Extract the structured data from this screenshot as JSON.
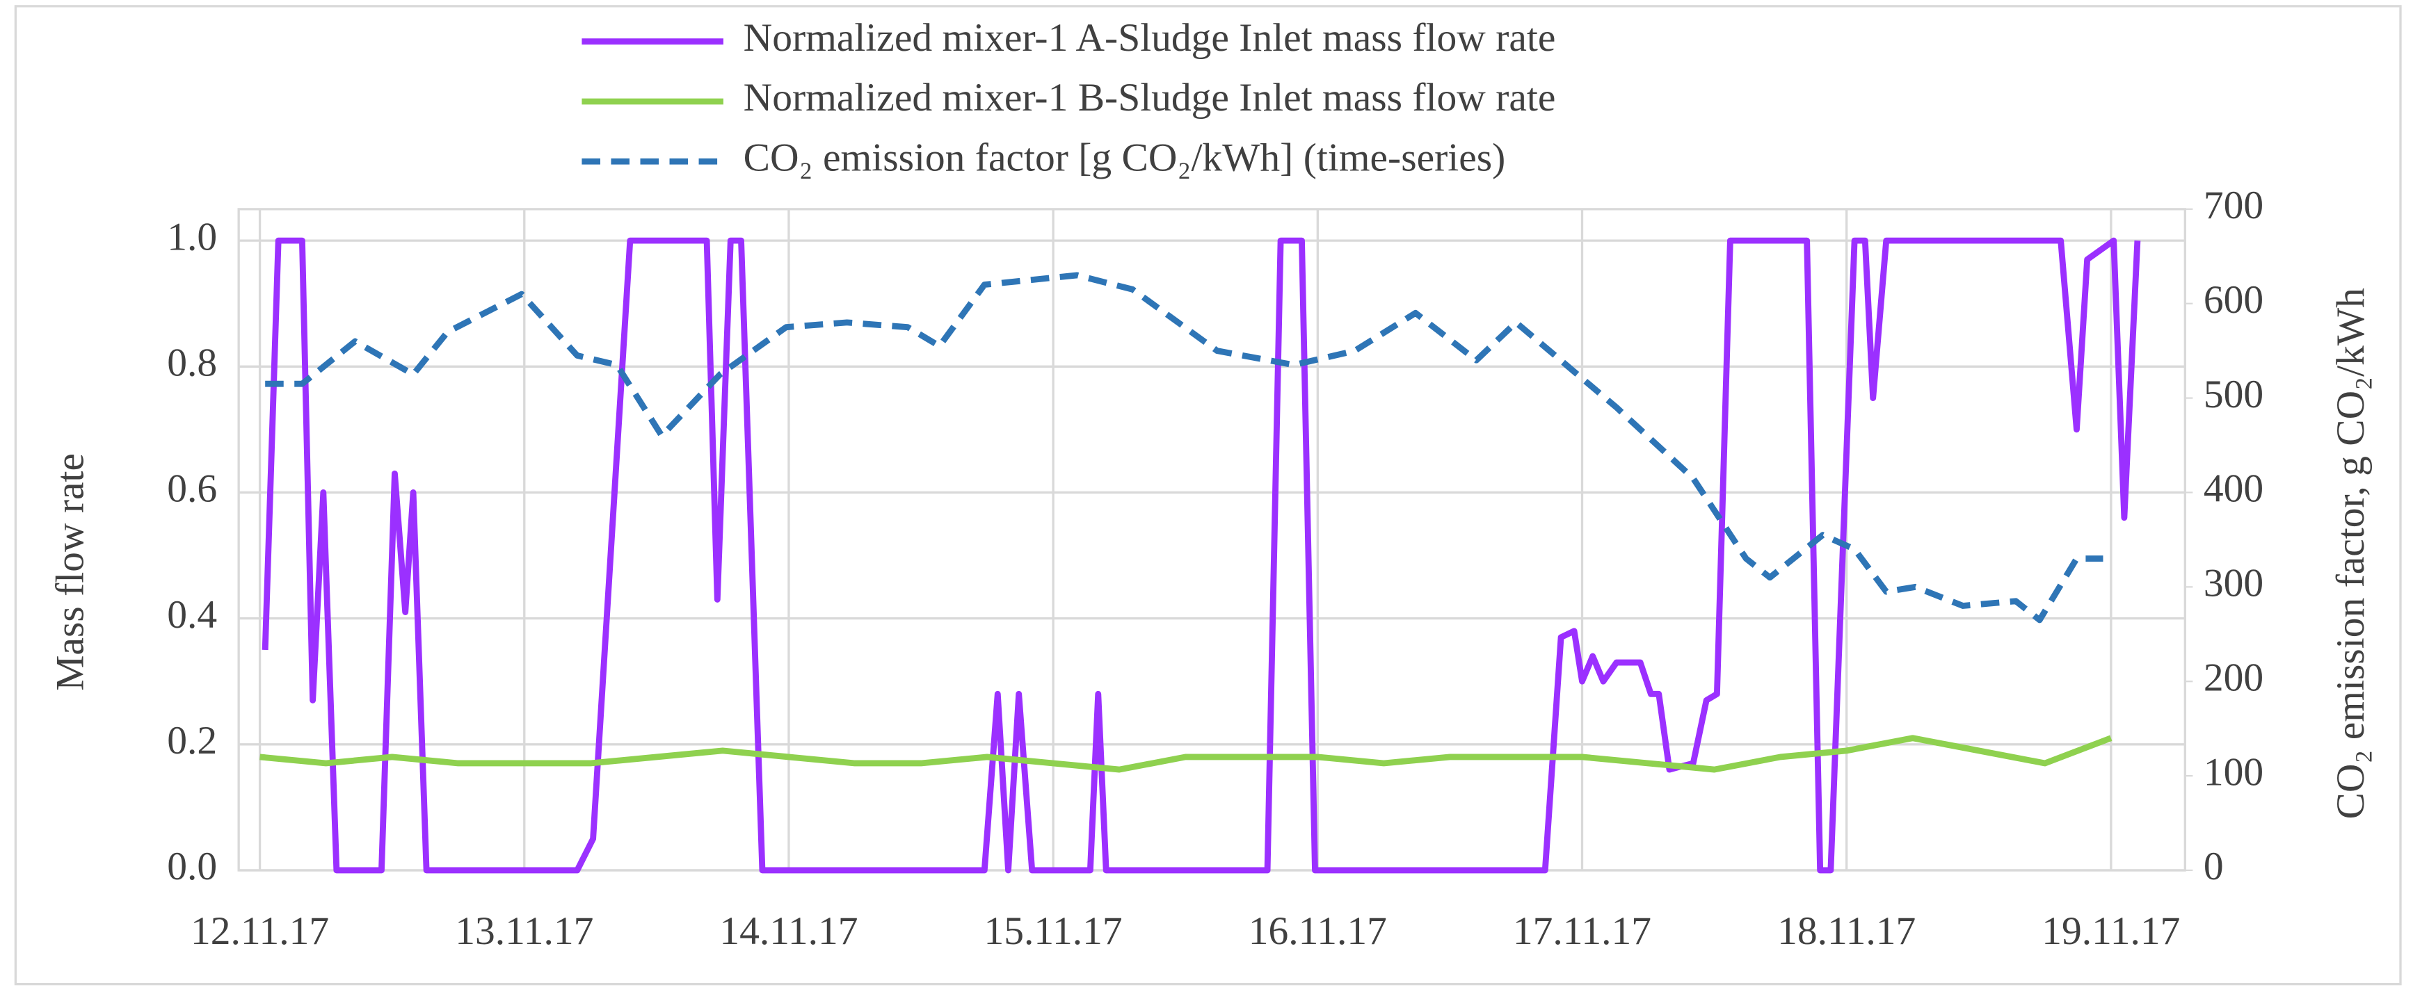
{
  "chart_data": {
    "type": "line",
    "xticks": [
      {
        "value": 0,
        "label": "12.11.17"
      },
      {
        "value": 1,
        "label": "13.11.17"
      },
      {
        "value": 2,
        "label": "14.11.17"
      },
      {
        "value": 3,
        "label": "15.11.17"
      },
      {
        "value": 4,
        "label": "16.11.17"
      },
      {
        "value": 5,
        "label": "17.11.17"
      },
      {
        "value": 6,
        "label": "18.11.17"
      },
      {
        "value": 7,
        "label": "19.11.17"
      }
    ],
    "xlim": [
      -0.08,
      7.28
    ],
    "ylabel": "Mass flow rate",
    "ylim": [
      0,
      1.05
    ],
    "yticks": [
      {
        "value": 0,
        "label": "0.0"
      },
      {
        "value": 0.2,
        "label": "0.2"
      },
      {
        "value": 0.4,
        "label": "0.4"
      },
      {
        "value": 0.6,
        "label": "0.6"
      },
      {
        "value": 0.8,
        "label": "0.8"
      },
      {
        "value": 1,
        "label": "1.0"
      }
    ],
    "y2label": "CO₂ emission factor, g CO₂/kWh",
    "y2lim": [
      0,
      700
    ],
    "y2ticks": [
      0,
      100,
      200,
      300,
      400,
      500,
      600,
      700
    ],
    "grid": true,
    "series": [
      {
        "name": "Normalized mixer-1 A-Sludge Inlet mass flow rate",
        "color": "#9b30ff",
        "x": [
          0.02,
          0.07,
          0.16,
          0.2,
          0.24,
          0.29,
          0.46,
          0.51,
          0.55,
          0.58,
          0.63,
          1.2,
          1.26,
          1.4,
          1.69,
          1.73,
          1.78,
          1.82,
          1.9,
          2.74,
          2.79,
          2.83,
          2.87,
          2.92,
          3.14,
          3.17,
          3.2,
          3.81,
          3.86,
          3.94,
          3.99,
          4.86,
          4.92,
          4.97,
          5.0,
          5.04,
          5.08,
          5.13,
          5.22,
          5.26,
          5.29,
          5.33,
          5.42,
          5.47,
          5.51,
          5.56,
          5.85,
          5.9,
          5.94,
          6.03,
          6.07,
          6.1,
          6.15,
          6.81,
          6.87,
          6.91,
          7.01,
          7.05,
          7.1
        ],
        "values": [
          0.35,
          1,
          1,
          0.27,
          0.6,
          0,
          0,
          0.63,
          0.41,
          0.6,
          0,
          0,
          0.05,
          1,
          1,
          0.43,
          1,
          1,
          0,
          0,
          0.28,
          0,
          0.28,
          0,
          0,
          0.28,
          0,
          0,
          1,
          1,
          0,
          0,
          0.37,
          0.38,
          0.3,
          0.34,
          0.3,
          0.33,
          0.33,
          0.28,
          0.28,
          0.16,
          0.17,
          0.27,
          0.28,
          1,
          1,
          0,
          0,
          1,
          1,
          0.75,
          1,
          1,
          0.7,
          0.97,
          1,
          0.56,
          1
        ]
      },
      {
        "name": "Normalized mixer-1 B-Sludge Inlet mass flow rate",
        "color": "#8fd14f",
        "x": [
          0,
          0.25,
          0.5,
          0.75,
          1,
          1.25,
          1.5,
          1.75,
          2,
          2.25,
          2.5,
          2.75,
          3,
          3.25,
          3.5,
          3.75,
          4,
          4.25,
          4.5,
          4.75,
          5,
          5.25,
          5.5,
          5.75,
          6,
          6.25,
          6.5,
          6.75,
          7
        ],
        "values": [
          0.18,
          0.17,
          0.18,
          0.17,
          0.17,
          0.17,
          0.18,
          0.19,
          0.18,
          0.17,
          0.17,
          0.18,
          0.17,
          0.16,
          0.18,
          0.18,
          0.18,
          0.17,
          0.18,
          0.18,
          0.18,
          0.17,
          0.16,
          0.18,
          0.19,
          0.21,
          0.19,
          0.17,
          0.21
        ]
      },
      {
        "name": "CO₂ emission  factor [g CO₂/kWh] (time-series)",
        "color": "#2e75b6",
        "dashed": true,
        "axis": "y2",
        "x": [
          0.02,
          0.16,
          0.36,
          0.58,
          0.71,
          0.99,
          1.2,
          1.35,
          1.52,
          1.74,
          1.99,
          2.22,
          2.45,
          2.57,
          2.74,
          3.09,
          3.3,
          3.62,
          3.91,
          4.14,
          4.37,
          4.6,
          4.75,
          5.13,
          5.42,
          5.62,
          5.71,
          5.91,
          6.03,
          6.15,
          6.26,
          6.44,
          6.64,
          6.73,
          6.87,
          6.97
        ],
        "values": [
          515,
          515,
          560,
          525,
          570,
          610,
          545,
          535,
          460,
          525,
          575,
          580,
          575,
          555,
          620,
          630,
          615,
          550,
          535,
          550,
          590,
          540,
          580,
          490,
          415,
          330,
          310,
          355,
          340,
          295,
          300,
          280,
          285,
          265,
          330,
          330
        ]
      }
    ]
  }
}
